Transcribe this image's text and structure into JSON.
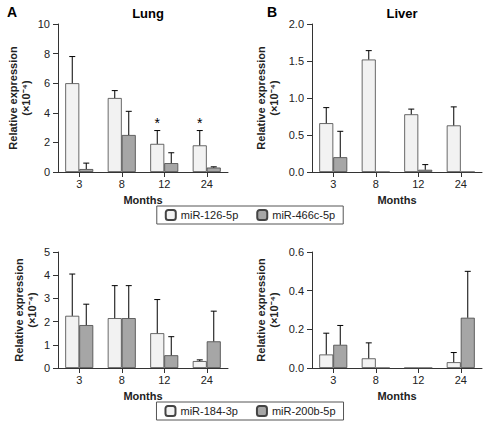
{
  "chart_data": [
    {
      "type": "bar",
      "panel": "A",
      "title": "Lung",
      "x_label": "Months",
      "y_label": "Relative expression\n(×10⁻⁴)",
      "categories": [
        "3",
        "8",
        "12",
        "24"
      ],
      "series": [
        {
          "name": "miR-126-5p",
          "color": "#f2f2f2",
          "values": [
            6.0,
            5.0,
            1.9,
            1.8
          ],
          "errors": [
            1.8,
            0.5,
            0.9,
            1.0
          ],
          "annotations": [
            null,
            null,
            "*",
            "*"
          ]
        },
        {
          "name": "miR-466c-5p",
          "color": "#a6a6a6",
          "values": [
            0.2,
            2.5,
            0.6,
            0.3
          ],
          "errors": [
            0.4,
            1.6,
            0.7,
            0.05
          ]
        }
      ],
      "ylim": [
        0,
        10
      ],
      "yticks": [
        0,
        2,
        4,
        6,
        8,
        10
      ],
      "grid": false,
      "legend": "bottom"
    },
    {
      "type": "bar",
      "panel": "B",
      "title": "Liver",
      "x_label": "Months",
      "y_label": "Relative expression\n(×10⁻⁴)",
      "categories": [
        "3",
        "8",
        "12",
        "24"
      ],
      "series": [
        {
          "name": "miR-126-5p",
          "color": "#f2f2f2",
          "values": [
            0.66,
            1.52,
            0.78,
            0.63
          ],
          "errors": [
            0.21,
            0.12,
            0.07,
            0.25
          ]
        },
        {
          "name": "miR-466c-5p",
          "color": "#a6a6a6",
          "values": [
            0.2,
            0,
            0.03,
            0
          ],
          "errors": [
            0.35,
            0,
            0.07,
            0
          ]
        }
      ],
      "ylim": [
        0,
        2
      ],
      "yticks": [
        {
          "value": 0,
          "label": "0.0"
        },
        {
          "value": 0.5,
          "label": "0.5"
        },
        {
          "value": 1,
          "label": "1.0"
        },
        {
          "value": 1.5,
          "label": "1.5"
        },
        {
          "value": 2,
          "label": "2.0"
        }
      ],
      "grid": false
    },
    {
      "type": "bar",
      "x_label": "Months",
      "y_label": "Relative expression\n(×10⁻⁴)",
      "categories": [
        "3",
        "8",
        "12",
        "24"
      ],
      "series": [
        {
          "name": "miR-184-3p",
          "color": "#f2f2f2",
          "values": [
            2.25,
            2.15,
            1.5,
            0.3
          ],
          "errors": [
            1.8,
            1.4,
            1.45,
            0.05
          ]
        },
        {
          "name": "miR-200b-5p",
          "color": "#a6a6a6",
          "values": [
            1.85,
            2.15,
            0.55,
            1.15
          ],
          "errors": [
            0.9,
            1.4,
            0.8,
            1.3
          ]
        }
      ],
      "ylim": [
        0,
        5
      ],
      "yticks": [
        0,
        1,
        2,
        3,
        4,
        5
      ],
      "grid": false,
      "legend": "bottom"
    },
    {
      "type": "bar",
      "x_label": "Months",
      "y_label": "Relative expression\n(×10⁻⁴)",
      "categories": [
        "3",
        "8",
        "12",
        "24"
      ],
      "series": [
        {
          "name": "miR-184-3p",
          "color": "#f2f2f2",
          "values": [
            0.07,
            0.05,
            0,
            0.03
          ],
          "errors": [
            0.11,
            0.08,
            0,
            0.05
          ]
        },
        {
          "name": "miR-200b-5p",
          "color": "#a6a6a6",
          "values": [
            0.12,
            0,
            0,
            0.26
          ],
          "errors": [
            0.1,
            0,
            0,
            0.24
          ]
        }
      ],
      "ylim": [
        0,
        0.6
      ],
      "yticks": [
        {
          "value": 0,
          "label": "0.0"
        },
        {
          "value": 0.2,
          "label": "0.2"
        },
        {
          "value": 0.4,
          "label": "0.4"
        },
        {
          "value": 0.6,
          "label": "0.6"
        }
      ],
      "grid": false
    }
  ]
}
